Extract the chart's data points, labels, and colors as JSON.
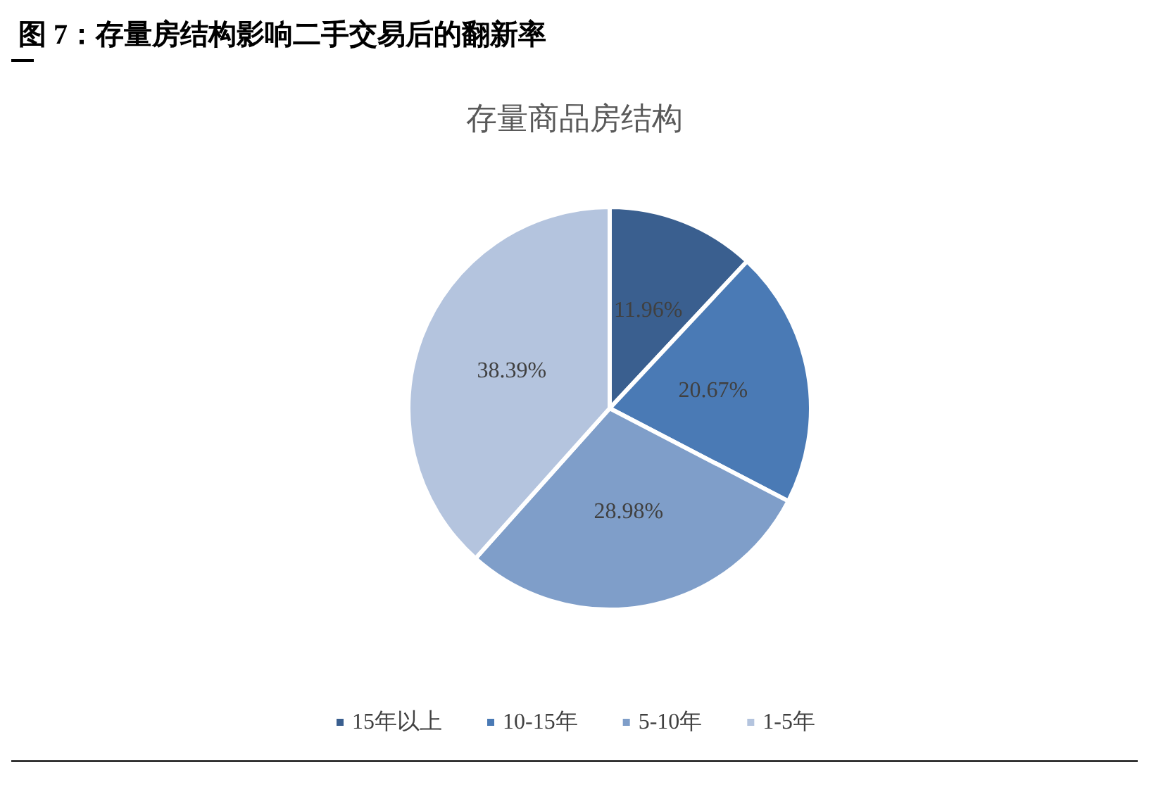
{
  "chart_data": {
    "type": "pie",
    "title": "图 7：存量房结构影响二手交易后的翻新率",
    "subtitle": "存量商品房结构",
    "categories": [
      "15年以上",
      "10-15年",
      "5-10年",
      "1-5年"
    ],
    "values": [
      11.96,
      20.67,
      28.98,
      38.39
    ],
    "colors": [
      "#3a5f8f",
      "#4a7ab5",
      "#7f9ec9",
      "#b4c4de"
    ],
    "value_labels": [
      "11.96%",
      "20.67%",
      "28.98%",
      "38.39%"
    ],
    "legend": "bottom"
  }
}
